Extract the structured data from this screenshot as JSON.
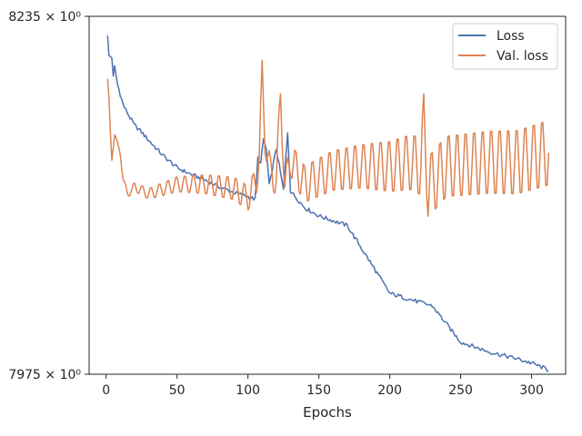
{
  "chart_data": {
    "type": "line",
    "xlabel": "Epochs",
    "ylabel": "",
    "title": "",
    "xlim": [
      -12,
      324
    ],
    "ylim": [
      7975,
      8235
    ],
    "y_scale": "log",
    "xticks": [
      0,
      50,
      100,
      150,
      200,
      250,
      300
    ],
    "xtick_labels": [
      "0",
      "50",
      "100",
      "150",
      "200",
      "250",
      "300"
    ],
    "yticks": [
      7975,
      8235
    ],
    "ytick_labels": [
      "7975 × 10⁰",
      "8235 × 10⁰"
    ],
    "legend": {
      "placement": "top-right",
      "entries": [
        "Loss",
        "Val. loss"
      ]
    },
    "grid": false,
    "series": [
      {
        "name": "Loss",
        "color": "#4c72b0",
        "anchors": [
          [
            1,
            8220
          ],
          [
            2,
            8206
          ],
          [
            4,
            8205
          ],
          [
            5,
            8190
          ],
          [
            6,
            8198
          ],
          [
            8,
            8185
          ],
          [
            12,
            8170
          ],
          [
            15,
            8164
          ],
          [
            20,
            8155
          ],
          [
            25,
            8150
          ],
          [
            30,
            8144
          ],
          [
            40,
            8133
          ],
          [
            50,
            8124
          ],
          [
            60,
            8119
          ],
          [
            70,
            8115
          ],
          [
            80,
            8110
          ],
          [
            90,
            8106
          ],
          [
            100,
            8103
          ],
          [
            105,
            8101
          ],
          [
            107,
            8131
          ],
          [
            109,
            8127
          ],
          [
            111,
            8145
          ],
          [
            113,
            8137
          ],
          [
            115,
            8111
          ],
          [
            120,
            8138
          ],
          [
            125,
            8108
          ],
          [
            128,
            8150
          ],
          [
            130,
            8107
          ],
          [
            140,
            8095
          ],
          [
            150,
            8089
          ],
          [
            170,
            8082
          ],
          [
            200,
            8033
          ],
          [
            230,
            8024
          ],
          [
            250,
            7998
          ],
          [
            270,
            7991
          ],
          [
            290,
            7986
          ],
          [
            300,
            7983
          ],
          [
            312,
            7978
          ]
        ],
        "noise": 1.5
      },
      {
        "name": "Val. loss",
        "color": "#dd8452",
        "anchors": [
          [
            1,
            8189
          ],
          [
            2,
            8175
          ],
          [
            3,
            8150
          ],
          [
            4,
            8130
          ],
          [
            6,
            8148
          ],
          [
            10,
            8135
          ],
          [
            12,
            8115
          ],
          [
            15,
            8105
          ],
          [
            20,
            8110
          ],
          [
            30,
            8105
          ],
          [
            50,
            8112
          ],
          [
            70,
            8112
          ],
          [
            90,
            8109
          ],
          [
            100,
            8102
          ],
          [
            106,
            8115
          ],
          [
            108,
            8133
          ],
          [
            110,
            8193
          ],
          [
            112,
            8145
          ],
          [
            116,
            8120
          ],
          [
            120,
            8115
          ],
          [
            123,
            8178
          ],
          [
            126,
            8110
          ],
          [
            130,
            8130
          ],
          [
            140,
            8112
          ],
          [
            160,
            8122
          ],
          [
            180,
            8125
          ],
          [
            200,
            8125
          ],
          [
            215,
            8128
          ],
          [
            222,
            8125
          ],
          [
            224,
            8157
          ],
          [
            227,
            8110
          ],
          [
            240,
            8125
          ],
          [
            270,
            8128
          ],
          [
            290,
            8128
          ],
          [
            312,
            8135
          ]
        ],
        "amplitude": [
          [
            1,
            0
          ],
          [
            15,
            3
          ],
          [
            60,
            7
          ],
          [
            100,
            10
          ],
          [
            140,
            15
          ],
          [
            180,
            18
          ],
          [
            230,
            25
          ],
          [
            312,
            27
          ]
        ],
        "period": 6
      }
    ]
  }
}
